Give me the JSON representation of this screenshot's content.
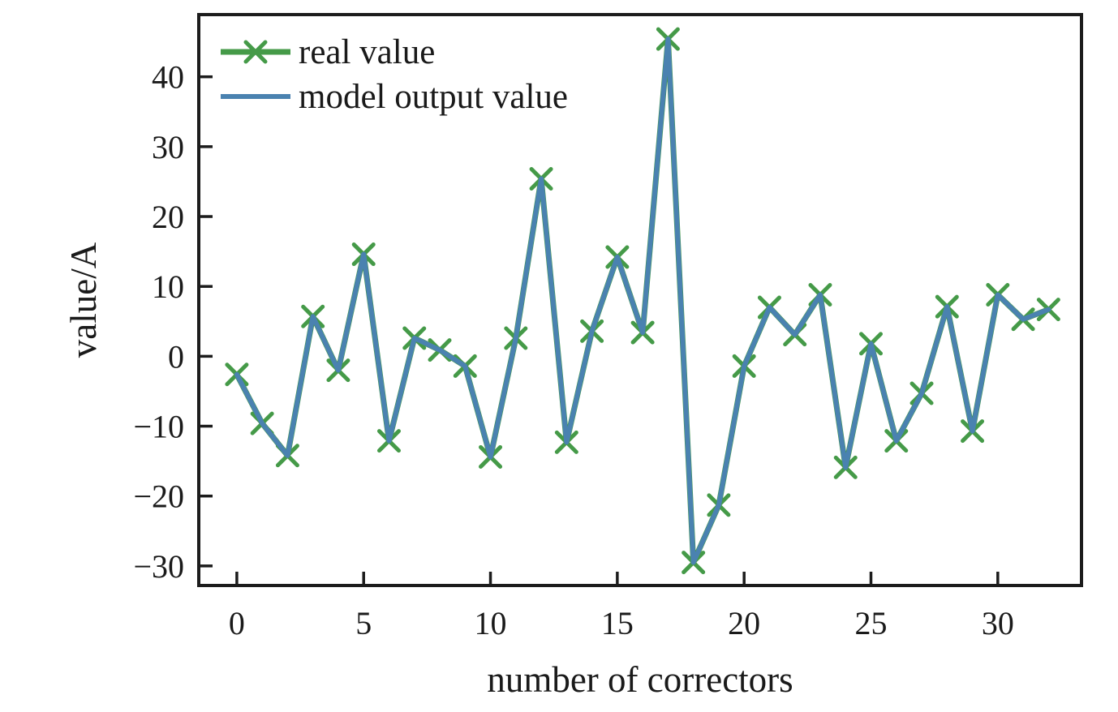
{
  "figure": {
    "background": "#ffffff",
    "ink": "#1c1c1c"
  },
  "chart_data": {
    "type": "line",
    "title": "",
    "xlabel": "number of correctors",
    "ylabel": "value/A",
    "x": [
      0,
      1,
      2,
      3,
      4,
      5,
      6,
      7,
      8,
      9,
      10,
      11,
      12,
      13,
      14,
      15,
      16,
      17,
      18,
      19,
      20,
      21,
      22,
      23,
      24,
      25,
      26,
      27,
      28,
      29,
      30,
      31,
      32
    ],
    "series": [
      {
        "name": "real value",
        "color": "#459a48",
        "marker": "x",
        "line_width": 7,
        "values": [
          -2.6,
          -9.6,
          -14.2,
          5.7,
          -2.0,
          14.6,
          -12.1,
          2.6,
          0.9,
          -1.4,
          -14.4,
          2.6,
          25.4,
          -12.3,
          3.6,
          14.2,
          3.4,
          45.4,
          -29.5,
          -21.3,
          -1.4,
          7.0,
          3.1,
          8.8,
          -15.9,
          1.8,
          -12.1,
          -5.3,
          7.1,
          -10.7,
          8.8,
          5.3,
          6.7
        ]
      },
      {
        "name": "model output value",
        "color": "#4a82b0",
        "marker": "none",
        "line_width": 6,
        "values": [
          -2.6,
          -9.6,
          -14.2,
          5.7,
          -2.0,
          14.6,
          -12.1,
          2.6,
          0.9,
          -1.4,
          -14.4,
          2.6,
          25.4,
          -12.3,
          3.6,
          14.2,
          3.4,
          45.4,
          -29.5,
          -21.3,
          -1.4,
          7.0,
          3.1,
          8.8,
          -15.9,
          1.8,
          -12.1,
          -5.3,
          7.1,
          -10.7,
          8.8,
          5.3,
          6.7
        ]
      }
    ],
    "xticks": [
      0,
      5,
      10,
      15,
      20,
      25,
      30
    ],
    "yticks": [
      -30,
      -20,
      -10,
      0,
      10,
      20,
      30,
      40
    ],
    "xlim": [
      -1.5,
      33.3
    ],
    "ylim": [
      -32.8,
      48.9
    ],
    "grid": false,
    "legend_position": "upper left",
    "tick_direction": "in"
  }
}
